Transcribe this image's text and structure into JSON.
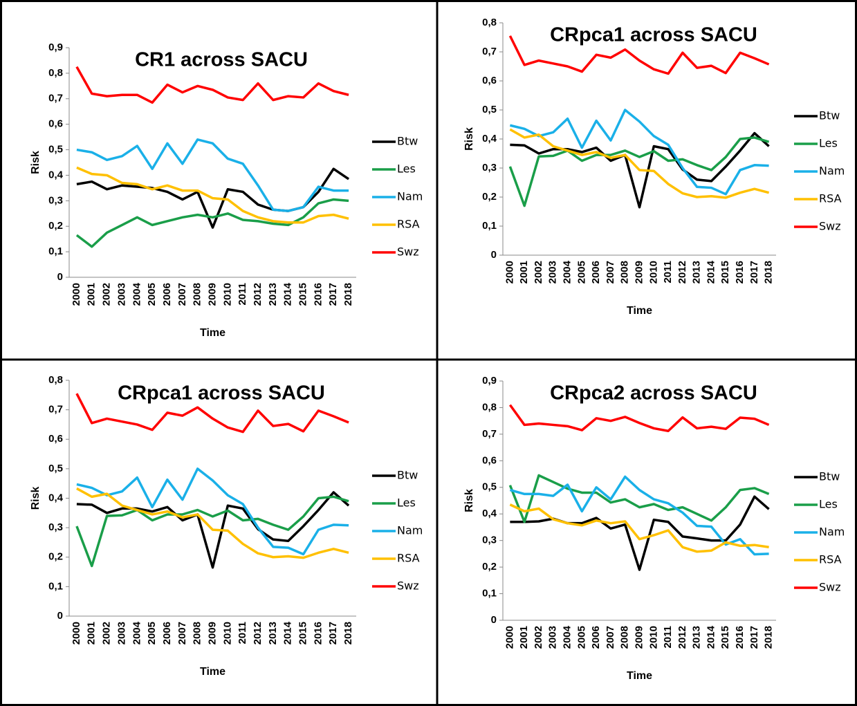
{
  "chart_data": [
    {
      "type": "line",
      "title": "CR1 across SACU",
      "xlabel": "Time",
      "ylabel": "Risk",
      "categories": [
        "2000",
        "2001",
        "2002",
        "2003",
        "2004",
        "2005",
        "2006",
        "2007",
        "2008",
        "2009",
        "2010",
        "2011",
        "2012",
        "2013",
        "2014",
        "2015",
        "2016",
        "2017",
        "2018"
      ],
      "ylim": [
        0,
        0.9
      ],
      "yticks": [
        0,
        {
          "value": 0.1,
          "label": "0,1"
        },
        {
          "value": 0.2,
          "label": "0,2"
        },
        {
          "value": 0.3,
          "label": "0,3"
        },
        {
          "value": 0.4,
          "label": "0,4"
        },
        {
          "value": 0.5,
          "label": "0,5"
        },
        {
          "value": 0.6,
          "label": "0,6"
        },
        {
          "value": 0.7,
          "label": "0,7"
        },
        {
          "value": 0.8,
          "label": "0,8"
        },
        {
          "value": 0.9,
          "label": "0,9"
        }
      ],
      "legend": "right",
      "series": [
        {
          "name": "Btw",
          "color": "#000000",
          "values": [
            0.365,
            0.375,
            0.345,
            0.36,
            0.355,
            0.35,
            0.335,
            0.305,
            0.335,
            0.195,
            0.345,
            0.335,
            0.285,
            0.265,
            0.26,
            0.275,
            0.335,
            0.425,
            0.385
          ]
        },
        {
          "name": "Les",
          "color": "#1a9e49",
          "values": [
            0.165,
            0.12,
            0.175,
            0.205,
            0.235,
            0.205,
            0.22,
            0.235,
            0.245,
            0.235,
            0.25,
            0.225,
            0.22,
            0.21,
            0.205,
            0.235,
            0.29,
            0.305,
            0.3
          ]
        },
        {
          "name": "Nam",
          "color": "#1ab0e8",
          "values": [
            0.5,
            0.49,
            0.46,
            0.475,
            0.515,
            0.425,
            0.525,
            0.445,
            0.54,
            0.525,
            0.465,
            0.445,
            0.36,
            0.265,
            0.26,
            0.275,
            0.355,
            0.34,
            0.34
          ]
        },
        {
          "name": "RSA",
          "color": "#ffc000",
          "values": [
            0.43,
            0.405,
            0.4,
            0.37,
            0.365,
            0.345,
            0.36,
            0.34,
            0.34,
            0.31,
            0.305,
            0.26,
            0.235,
            0.22,
            0.215,
            0.215,
            0.24,
            0.245,
            0.23
          ]
        },
        {
          "name": "Swz",
          "color": "#ff0000",
          "values": [
            0.825,
            0.72,
            0.71,
            0.715,
            0.715,
            0.685,
            0.755,
            0.725,
            0.75,
            0.735,
            0.705,
            0.695,
            0.76,
            0.695,
            0.71,
            0.705,
            0.76,
            0.73,
            0.715
          ]
        }
      ]
    },
    {
      "type": "line",
      "title": "CRpca1 across SACU",
      "xlabel": "Time",
      "ylabel": "Risk",
      "categories": [
        "2000",
        "2001",
        "2002",
        "2003",
        "2004",
        "2005",
        "2006",
        "2007",
        "2008",
        "2009",
        "2010",
        "2011",
        "2012",
        "2013",
        "2014",
        "2015",
        "2016",
        "2017",
        "2018"
      ],
      "ylim": [
        0,
        0.8
      ],
      "yticks": [
        0,
        {
          "value": 0.1,
          "label": "0,1"
        },
        {
          "value": 0.2,
          "label": "0,2"
        },
        {
          "value": 0.3,
          "label": "0,3"
        },
        {
          "value": 0.4,
          "label": "0,4"
        },
        {
          "value": 0.5,
          "label": "0,5"
        },
        {
          "value": 0.6,
          "label": "0,6"
        },
        {
          "value": 0.7,
          "label": "0,7"
        },
        {
          "value": 0.8,
          "label": "0,8"
        }
      ],
      "legend": "right",
      "series": [
        {
          "name": "Btw",
          "color": "#000000",
          "values": [
            0.38,
            0.378,
            0.35,
            0.365,
            0.365,
            0.355,
            0.37,
            0.325,
            0.345,
            0.165,
            0.375,
            0.365,
            0.295,
            0.26,
            0.255,
            0.305,
            0.36,
            0.42,
            0.375
          ]
        },
        {
          "name": "Les",
          "color": "#1a9e49",
          "values": [
            0.305,
            0.17,
            0.34,
            0.342,
            0.36,
            0.325,
            0.345,
            0.345,
            0.36,
            0.338,
            0.358,
            0.325,
            0.33,
            0.31,
            0.293,
            0.338,
            0.4,
            0.405,
            0.39
          ]
        },
        {
          "name": "Nam",
          "color": "#1ab0e8",
          "values": [
            0.447,
            0.435,
            0.41,
            0.423,
            0.47,
            0.37,
            0.463,
            0.395,
            0.5,
            0.46,
            0.41,
            0.38,
            0.3,
            0.235,
            0.232,
            0.21,
            0.293,
            0.31,
            0.308
          ]
        },
        {
          "name": "RSA",
          "color": "#ffc000",
          "values": [
            0.433,
            0.405,
            0.415,
            0.375,
            0.36,
            0.345,
            0.355,
            0.335,
            0.345,
            0.293,
            0.29,
            0.245,
            0.213,
            0.2,
            0.203,
            0.198,
            0.215,
            0.228,
            0.215
          ]
        },
        {
          "name": "Swz",
          "color": "#ff0000",
          "values": [
            0.755,
            0.655,
            0.67,
            0.66,
            0.65,
            0.632,
            0.69,
            0.68,
            0.708,
            0.67,
            0.64,
            0.625,
            0.697,
            0.645,
            0.652,
            0.627,
            0.697,
            0.678,
            0.657
          ]
        }
      ]
    },
    {
      "type": "line",
      "title": "CRpca1 across SACU",
      "xlabel": "Time",
      "ylabel": "Risk",
      "categories": [
        "2000",
        "2001",
        "2002",
        "2003",
        "2004",
        "2005",
        "2006",
        "2007",
        "2008",
        "2009",
        "2010",
        "2011",
        "2012",
        "2013",
        "2014",
        "2015",
        "2016",
        "2017",
        "2018"
      ],
      "ylim": [
        0,
        0.8
      ],
      "yticks": [
        0,
        {
          "value": 0.1,
          "label": "0,1"
        },
        {
          "value": 0.2,
          "label": "0,2"
        },
        {
          "value": 0.3,
          "label": "0,3"
        },
        {
          "value": 0.4,
          "label": "0,4"
        },
        {
          "value": 0.5,
          "label": "0,5"
        },
        {
          "value": 0.6,
          "label": "0,6"
        },
        {
          "value": 0.7,
          "label": "0,7"
        },
        {
          "value": 0.8,
          "label": "0,8"
        }
      ],
      "legend": "right",
      "series": [
        {
          "name": "Btw",
          "color": "#000000",
          "values": [
            0.38,
            0.378,
            0.35,
            0.365,
            0.365,
            0.355,
            0.37,
            0.325,
            0.345,
            0.165,
            0.375,
            0.365,
            0.295,
            0.26,
            0.255,
            0.305,
            0.36,
            0.42,
            0.375
          ]
        },
        {
          "name": "Les",
          "color": "#1a9e49",
          "values": [
            0.305,
            0.17,
            0.34,
            0.342,
            0.36,
            0.325,
            0.345,
            0.345,
            0.36,
            0.338,
            0.358,
            0.325,
            0.33,
            0.31,
            0.293,
            0.338,
            0.4,
            0.405,
            0.39
          ]
        },
        {
          "name": "Nam",
          "color": "#1ab0e8",
          "values": [
            0.447,
            0.435,
            0.41,
            0.423,
            0.47,
            0.37,
            0.463,
            0.395,
            0.5,
            0.46,
            0.41,
            0.38,
            0.3,
            0.235,
            0.232,
            0.21,
            0.293,
            0.31,
            0.308
          ]
        },
        {
          "name": "RSA",
          "color": "#ffc000",
          "values": [
            0.433,
            0.405,
            0.415,
            0.375,
            0.36,
            0.345,
            0.355,
            0.335,
            0.345,
            0.293,
            0.29,
            0.245,
            0.213,
            0.2,
            0.203,
            0.198,
            0.215,
            0.228,
            0.215
          ]
        },
        {
          "name": "Swz",
          "color": "#ff0000",
          "values": [
            0.755,
            0.655,
            0.67,
            0.66,
            0.65,
            0.632,
            0.69,
            0.68,
            0.708,
            0.67,
            0.64,
            0.625,
            0.697,
            0.645,
            0.652,
            0.627,
            0.697,
            0.678,
            0.657
          ]
        }
      ]
    },
    {
      "type": "line",
      "title": "CRpca2 across SACU",
      "xlabel": "Time",
      "ylabel": "Risk",
      "categories": [
        "2000",
        "2001",
        "2002",
        "2003",
        "2004",
        "2005",
        "2006",
        "2007",
        "2008",
        "2009",
        "2010",
        "2011",
        "2012",
        "2013",
        "2014",
        "2015",
        "2016",
        "2017",
        "2018"
      ],
      "ylim": [
        0,
        0.9
      ],
      "yticks": [
        0,
        {
          "value": 0.1,
          "label": "0,1"
        },
        {
          "value": 0.2,
          "label": "0,2"
        },
        {
          "value": 0.3,
          "label": "0,3"
        },
        {
          "value": 0.4,
          "label": "0,4"
        },
        {
          "value": 0.5,
          "label": "0,5"
        },
        {
          "value": 0.6,
          "label": "0,6"
        },
        {
          "value": 0.7,
          "label": "0,7"
        },
        {
          "value": 0.8,
          "label": "0,8"
        },
        {
          "value": 0.9,
          "label": "0,9"
        }
      ],
      "legend": "right",
      "series": [
        {
          "name": "Btw",
          "color": "#000000",
          "values": [
            0.37,
            0.37,
            0.372,
            0.382,
            0.365,
            0.365,
            0.385,
            0.345,
            0.36,
            0.19,
            0.378,
            0.37,
            0.315,
            0.308,
            0.3,
            0.3,
            0.36,
            0.465,
            0.418
          ]
        },
        {
          "name": "Les",
          "color": "#1a9e49",
          "values": [
            0.508,
            0.37,
            0.545,
            0.52,
            0.495,
            0.48,
            0.48,
            0.443,
            0.455,
            0.425,
            0.437,
            0.415,
            0.425,
            0.4,
            0.375,
            0.425,
            0.49,
            0.497,
            0.475
          ]
        },
        {
          "name": "Nam",
          "color": "#1ab0e8",
          "values": [
            0.49,
            0.475,
            0.475,
            0.468,
            0.51,
            0.41,
            0.5,
            0.455,
            0.54,
            0.49,
            0.455,
            0.44,
            0.405,
            0.355,
            0.352,
            0.285,
            0.305,
            0.248,
            0.25
          ]
        },
        {
          "name": "RSA",
          "color": "#ffc000",
          "values": [
            0.435,
            0.41,
            0.42,
            0.38,
            0.365,
            0.357,
            0.375,
            0.365,
            0.372,
            0.305,
            0.32,
            0.338,
            0.275,
            0.258,
            0.262,
            0.293,
            0.28,
            0.283,
            0.275
          ]
        },
        {
          "name": "Swz",
          "color": "#ff0000",
          "values": [
            0.81,
            0.735,
            0.74,
            0.735,
            0.73,
            0.715,
            0.76,
            0.75,
            0.765,
            0.742,
            0.722,
            0.712,
            0.763,
            0.722,
            0.728,
            0.72,
            0.762,
            0.758,
            0.735
          ]
        }
      ]
    }
  ]
}
